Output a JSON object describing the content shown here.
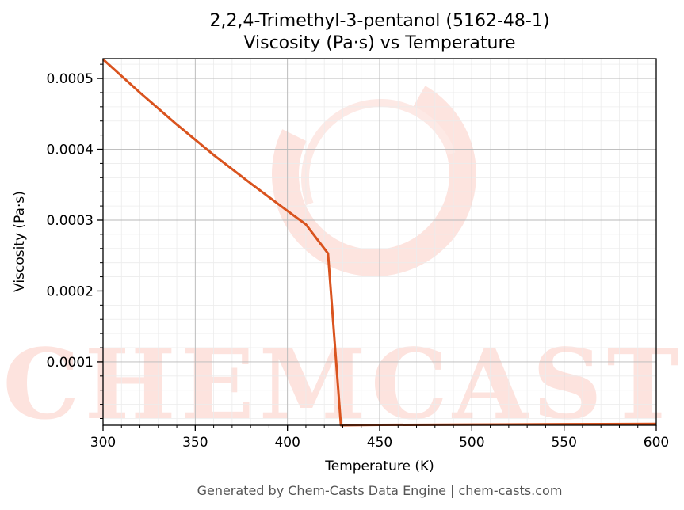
{
  "chart_data": {
    "type": "line",
    "title_line1": "2,2,4-Trimethyl-3-pentanol (5162-48-1)",
    "title_line2": "Viscosity (Pa·s) vs Temperature",
    "xlabel": "Temperature (K)",
    "ylabel": "Viscosity (Pa·s)",
    "xlim": [
      300,
      600
    ],
    "ylim": [
      1.05e-05,
      0.000528
    ],
    "x_ticks": [
      300,
      350,
      400,
      450,
      500,
      550,
      600
    ],
    "x_tick_labels": [
      "300",
      "350",
      "400",
      "450",
      "500",
      "550",
      "600"
    ],
    "y_ticks": [
      0.0001,
      0.0002,
      0.0003,
      0.0004,
      0.0005
    ],
    "y_tick_labels": [
      "0.0001",
      "0.0002",
      "0.0003",
      "0.0004",
      "0.0005"
    ],
    "grid": true,
    "series": [
      {
        "color": "#d9531e",
        "x": [
          300,
          320,
          340,
          360,
          380,
          400,
          410,
          422,
          429,
          450,
          500,
          550,
          600
        ],
        "y": [
          0.000527,
          0.00048,
          0.000435,
          0.000392,
          0.000352,
          0.000313,
          0.000294,
          0.000253,
          1.05e-05,
          1.1e-05,
          1.15e-05,
          1.2e-05,
          1.25e-05
        ]
      }
    ]
  },
  "watermark": {
    "text": "CHEMCASTS",
    "color": "#fde3de"
  },
  "footer": "Generated by Chem-Casts Data Engine | chem-casts.com"
}
